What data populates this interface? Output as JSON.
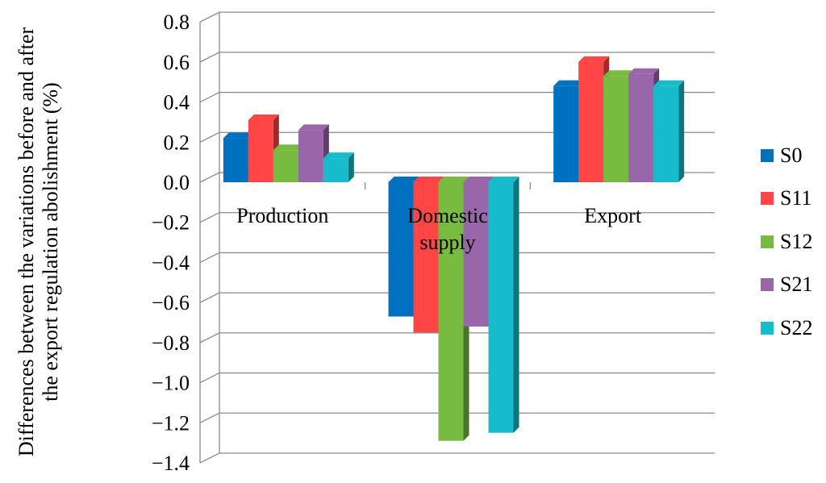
{
  "chart_data": {
    "type": "bar",
    "title": "",
    "xlabel": "",
    "ylabel": "Differences between the variations before and after the export regulation abolishment (%)",
    "ylim": [
      -1.4,
      0.8
    ],
    "yticks": [
      "0.8",
      "0.6",
      "0.4",
      "0.2",
      "0.0",
      "−0.2",
      "−0.4",
      "−0.6",
      "−0.8",
      "−1.0",
      "−1.2",
      "−1.4"
    ],
    "ytick_values": [
      0.8,
      0.6,
      0.4,
      0.2,
      0.0,
      -0.2,
      -0.4,
      -0.6,
      -0.8,
      -1.0,
      -1.2,
      -1.4
    ],
    "categories": [
      "Production",
      "Domestic supply",
      "Export"
    ],
    "category_lines": [
      [
        "Production"
      ],
      [
        "Domestic",
        "supply"
      ],
      [
        "Export"
      ]
    ],
    "grid": true,
    "style": "3d",
    "legend_position": "right",
    "series": [
      {
        "name": "S0",
        "color": "#0070C0",
        "values": [
          0.22,
          -0.67,
          0.48
        ]
      },
      {
        "name": "S11",
        "color": "#FF4545",
        "values": [
          0.31,
          -0.75,
          0.6
        ]
      },
      {
        "name": "S12",
        "color": "#77BB41",
        "values": [
          0.16,
          -1.29,
          0.53
        ]
      },
      {
        "name": "S21",
        "color": "#9966AA",
        "values": [
          0.26,
          -0.72,
          0.54
        ]
      },
      {
        "name": "S22",
        "color": "#17BCCC",
        "values": [
          0.12,
          -1.25,
          0.48
        ]
      }
    ]
  }
}
